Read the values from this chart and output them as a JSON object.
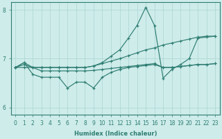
{
  "xlabel": "Humidex (Indice chaleur)",
  "xlim": [
    -0.5,
    23.5
  ],
  "ylim": [
    5.85,
    8.15
  ],
  "yticks": [
    6,
    7,
    8
  ],
  "xticks": [
    0,
    1,
    2,
    3,
    4,
    5,
    6,
    7,
    8,
    9,
    10,
    11,
    12,
    13,
    14,
    15,
    16,
    17,
    18,
    19,
    20,
    21,
    22,
    23
  ],
  "background_color": "#ceecea",
  "grid_color": "#b0d8d5",
  "line_color": "#2e7d72",
  "lines": [
    {
      "x": [
        0,
        1,
        2,
        3,
        4,
        5,
        6,
        7,
        8,
        9,
        10,
        11,
        12,
        13,
        14,
        15,
        16,
        17,
        18,
        19,
        20,
        21,
        22,
        23
      ],
      "y": [
        6.82,
        6.88,
        6.82,
        6.82,
        6.82,
        6.82,
        6.82,
        6.82,
        6.82,
        6.85,
        6.9,
        6.95,
        7.0,
        7.06,
        7.12,
        7.18,
        7.22,
        7.28,
        7.32,
        7.36,
        7.4,
        7.44,
        7.46,
        7.46
      ]
    },
    {
      "x": [
        0,
        1,
        2,
        3,
        4,
        5,
        6,
        7,
        8,
        9,
        10,
        11,
        12,
        13,
        14,
        15,
        16,
        17,
        18,
        19,
        20,
        21,
        22,
        23
      ],
      "y": [
        6.82,
        6.82,
        6.82,
        6.82,
        6.82,
        6.82,
        6.82,
        6.82,
        6.82,
        6.85,
        6.92,
        7.05,
        7.18,
        7.42,
        7.68,
        8.05,
        7.68,
        6.6,
        6.78,
        6.88,
        7.0,
        7.42,
        7.44,
        7.46
      ]
    },
    {
      "x": [
        0,
        1,
        2,
        3,
        4,
        5,
        6,
        7,
        8,
        9,
        10,
        11,
        12,
        13,
        14,
        15,
        16,
        17,
        18,
        19,
        20,
        21,
        22,
        23
      ],
      "y": [
        6.82,
        6.92,
        6.82,
        6.75,
        6.75,
        6.75,
        6.75,
        6.75,
        6.75,
        6.76,
        6.78,
        6.8,
        6.82,
        6.84,
        6.86,
        6.88,
        6.9,
        6.82,
        6.82,
        6.84,
        6.86,
        6.88,
        6.88,
        6.9
      ]
    },
    {
      "x": [
        0,
        1,
        2,
        3,
        4,
        5,
        6,
        7,
        8,
        9,
        10,
        11,
        12,
        13,
        14,
        15,
        16,
        17,
        18,
        19,
        20,
        21,
        22,
        23
      ],
      "y": [
        6.82,
        6.92,
        6.68,
        6.62,
        6.62,
        6.62,
        6.4,
        6.52,
        6.52,
        6.4,
        6.62,
        6.72,
        6.78,
        6.82,
        6.84,
        6.86,
        6.88,
        6.82,
        6.82,
        6.84,
        6.86,
        6.88,
        6.88,
        6.9
      ]
    }
  ]
}
